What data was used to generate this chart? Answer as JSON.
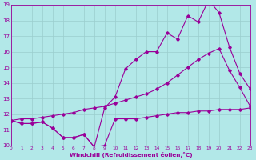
{
  "xlabel": "Windchill (Refroidissement éolien,°C)",
  "bg_color": "#b2e8e8",
  "grid_color": "#9acece",
  "line_color": "#990099",
  "xlim": [
    0,
    23
  ],
  "ylim": [
    10,
    19
  ],
  "xticks": [
    0,
    1,
    2,
    3,
    4,
    5,
    6,
    7,
    8,
    9,
    10,
    11,
    12,
    13,
    14,
    15,
    16,
    17,
    18,
    19,
    20,
    21,
    22,
    23
  ],
  "yticks": [
    10,
    11,
    12,
    13,
    14,
    15,
    16,
    17,
    18,
    19
  ],
  "line1_x": [
    0,
    1,
    2,
    3,
    4,
    5,
    6,
    7,
    8,
    9,
    10,
    11,
    12,
    13,
    14,
    15,
    16,
    17,
    18,
    19,
    20,
    21,
    22,
    23
  ],
  "line1_y": [
    11.6,
    11.4,
    11.4,
    11.5,
    11.1,
    10.5,
    10.5,
    10.7,
    9.9,
    10.0,
    11.7,
    11.7,
    11.7,
    11.8,
    11.9,
    12.0,
    12.1,
    12.1,
    12.2,
    12.2,
    12.3,
    12.3,
    12.3,
    12.4
  ],
  "line2_x": [
    0,
    1,
    2,
    3,
    4,
    5,
    6,
    7,
    8,
    9,
    10,
    11,
    12,
    13,
    14,
    15,
    16,
    17,
    18,
    19,
    20,
    21,
    22,
    23
  ],
  "line2_y": [
    11.6,
    11.4,
    11.4,
    11.5,
    11.1,
    10.5,
    10.5,
    10.7,
    9.9,
    12.4,
    13.1,
    14.9,
    15.5,
    16.0,
    16.0,
    17.2,
    16.8,
    18.3,
    17.9,
    19.3,
    18.5,
    16.3,
    14.6,
    13.6
  ],
  "line3_x": [
    0,
    1,
    2,
    3,
    4,
    5,
    6,
    7,
    8,
    9,
    10,
    11,
    12,
    13,
    14,
    15,
    16,
    17,
    18,
    19,
    20,
    21,
    22,
    23
  ],
  "line3_y": [
    11.6,
    11.7,
    11.7,
    11.8,
    11.9,
    12.0,
    12.1,
    12.3,
    12.4,
    12.5,
    12.7,
    12.9,
    13.1,
    13.3,
    13.6,
    14.0,
    14.5,
    15.0,
    15.5,
    15.9,
    16.2,
    14.8,
    13.7,
    12.5
  ]
}
